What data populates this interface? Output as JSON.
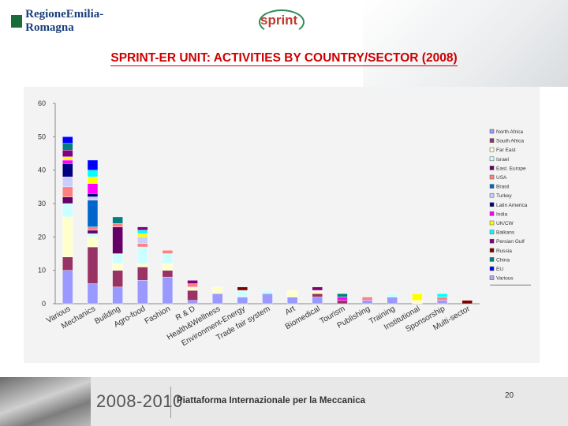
{
  "header": {
    "region_logo": "RegioneEmilia-Romagna",
    "sprint_logo": "sprint"
  },
  "title": "SPRINT-ER UNIT: ACTIVITIES BY COUNTRY/SECTOR (2008)",
  "footer": {
    "years": "2008-2010",
    "text": "Piattaforma Internazionale per la Meccanica",
    "page": "20"
  },
  "colors": {
    "North Africa": "#9999ff",
    "South Africa": "#993366",
    "Far East": "#ffffcc",
    "Israel": "#ccffff",
    "East. Europe": "#660066",
    "USA": "#ff8080",
    "Brasil": "#0066cc",
    "Turkey": "#ccccff",
    "Latin America": "#000080",
    "India": "#ff00ff",
    "UK/CW": "#ffff00",
    "Balkans": "#00ffff",
    "Persian Gulf": "#800080",
    "Russia": "#800000",
    "China": "#008080",
    "EU": "#0000ff",
    "Various": "#aaaaee"
  },
  "chart_data": {
    "type": "bar",
    "stacked": true,
    "ylim": [
      0,
      60
    ],
    "yticks": [
      0,
      10,
      20,
      30,
      40,
      50,
      60
    ],
    "categories": [
      "Various",
      "Mechanics",
      "Building",
      "Agro-food",
      "Fashion",
      "R & D",
      "Health&Wellness",
      "Environment-Energy",
      "Trade fair system",
      "Art",
      "Biomedical",
      "Tourism",
      "Publishing",
      "Training",
      "Institutional",
      "Sponsorship",
      "Multi-sector"
    ],
    "legend": [
      "North Africa",
      "South Africa",
      "Far East",
      "Israel",
      "East. Europe",
      "USA",
      "Brasil",
      "Turkey",
      "Latin America",
      "India",
      "UK/CW",
      "Balkans",
      "Persian Gulf",
      "Russia",
      "China",
      "EU",
      "Various"
    ],
    "legend_position": "right",
    "bars": [
      [
        [
          "North Africa",
          10
        ],
        [
          "South Africa",
          4
        ],
        [
          "Far East",
          12
        ],
        [
          "Israel",
          4
        ],
        [
          "East. Europe",
          2
        ],
        [
          "USA",
          3
        ],
        [
          "Turkey",
          3
        ],
        [
          "Latin America",
          4
        ],
        [
          "India",
          1
        ],
        [
          "UK/CW",
          1
        ],
        [
          "Persian Gulf",
          2
        ],
        [
          "China",
          2
        ],
        [
          "EU",
          2
        ]
      ],
      [
        [
          "North Africa",
          6
        ],
        [
          "South Africa",
          11
        ],
        [
          "Far East",
          3
        ],
        [
          "Israel",
          1
        ],
        [
          "East. Europe",
          1
        ],
        [
          "USA",
          1
        ],
        [
          "Brasil",
          8
        ],
        [
          "Turkey",
          1
        ],
        [
          "Latin America",
          1
        ],
        [
          "India",
          3
        ],
        [
          "UK/CW",
          2
        ],
        [
          "Balkans",
          2
        ],
        [
          "EU",
          3
        ]
      ],
      [
        [
          "North Africa",
          5
        ],
        [
          "South Africa",
          5
        ],
        [
          "Far East",
          2
        ],
        [
          "Israel",
          3
        ],
        [
          "East. Europe",
          8
        ],
        [
          "USA",
          1
        ],
        [
          "China",
          2
        ]
      ],
      [
        [
          "North Africa",
          7
        ],
        [
          "South Africa",
          4
        ],
        [
          "Far East",
          1
        ],
        [
          "Israel",
          5
        ],
        [
          "USA",
          1
        ],
        [
          "Turkey",
          2
        ],
        [
          "UK/CW",
          1
        ],
        [
          "Balkans",
          1
        ],
        [
          "Persian Gulf",
          1
        ]
      ],
      [
        [
          "North Africa",
          8
        ],
        [
          "South Africa",
          2
        ],
        [
          "Far East",
          2
        ],
        [
          "Israel",
          3
        ],
        [
          "USA",
          1
        ]
      ],
      [
        [
          "North Africa",
          1
        ],
        [
          "South Africa",
          3
        ],
        [
          "Far East",
          1
        ],
        [
          "USA",
          1
        ],
        [
          "Persian Gulf",
          1
        ]
      ],
      [
        [
          "North Africa",
          3
        ],
        [
          "Far East",
          2
        ]
      ],
      [
        [
          "North Africa",
          2
        ],
        [
          "Israel",
          2
        ],
        [
          "Russia",
          1
        ]
      ],
      [
        [
          "North Africa",
          3
        ],
        [
          "Israel",
          1
        ]
      ],
      [
        [
          "North Africa",
          2
        ],
        [
          "Far East",
          2
        ]
      ],
      [
        [
          "North Africa",
          2
        ],
        [
          "South Africa",
          1
        ],
        [
          "Far East",
          1
        ],
        [
          "Persian Gulf",
          1
        ]
      ],
      [
        [
          "South Africa",
          1
        ],
        [
          "India",
          1
        ],
        [
          "China",
          1
        ]
      ],
      [
        [
          "North Africa",
          1
        ],
        [
          "USA",
          1
        ]
      ],
      [
        [
          "North Africa",
          2
        ],
        [
          "Israel",
          1
        ]
      ],
      [
        [
          "Far East",
          1
        ],
        [
          "UK/CW",
          2
        ]
      ],
      [
        [
          "North Africa",
          1
        ],
        [
          "USA",
          1
        ],
        [
          "Balkans",
          1
        ]
      ],
      [
        [
          "Russia",
          1
        ]
      ]
    ]
  }
}
